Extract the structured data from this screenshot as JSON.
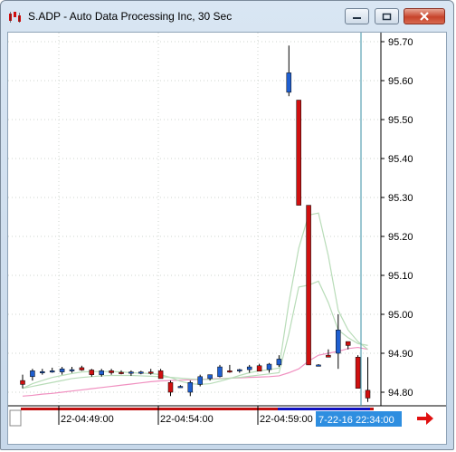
{
  "window": {
    "title": "S.ADP - Auto Data Processing Inc, 30 Sec",
    "icon": "chart-app-icon",
    "buttons": [
      "minimize-icon",
      "maximize-icon",
      "close-icon"
    ]
  },
  "colors": {
    "up": "#1f5fd0",
    "down": "#d01010",
    "ma_fast": "#b8dcb8",
    "ma_slow": "#f090c0",
    "cursor_line": "#3a8fa6",
    "time_highlight": "#2e8ee0"
  },
  "chart_data": {
    "type": "candlestick",
    "yaxis_ticks": [
      "95.70",
      "95.60",
      "95.50",
      "95.40",
      "95.30",
      "95.20",
      "95.10",
      "95.00",
      "94.90",
      "94.80"
    ],
    "ylim": [
      94.77,
      95.72
    ],
    "xaxis_labels": [
      "22-04:49:00",
      "22-04:54:00",
      "22-04:59:00"
    ],
    "cursor_time_label": "7-22-16 22:34:00",
    "candles": [
      {
        "o": 94.83,
        "h": 94.845,
        "l": 94.81,
        "c": 94.82
      },
      {
        "o": 94.84,
        "h": 94.86,
        "l": 94.83,
        "c": 94.855
      },
      {
        "o": 94.852,
        "h": 94.86,
        "l": 94.845,
        "c": 94.853
      },
      {
        "o": 94.855,
        "h": 94.863,
        "l": 94.85,
        "c": 94.855
      },
      {
        "o": 94.852,
        "h": 94.865,
        "l": 94.845,
        "c": 94.86
      },
      {
        "o": 94.858,
        "h": 94.865,
        "l": 94.85,
        "c": 94.858
      },
      {
        "o": 94.863,
        "h": 94.868,
        "l": 94.855,
        "c": 94.857
      },
      {
        "o": 94.857,
        "h": 94.86,
        "l": 94.84,
        "c": 94.845
      },
      {
        "o": 94.845,
        "h": 94.86,
        "l": 94.84,
        "c": 94.855
      },
      {
        "o": 94.855,
        "h": 94.86,
        "l": 94.845,
        "c": 94.85
      },
      {
        "o": 94.851,
        "h": 94.856,
        "l": 94.846,
        "c": 94.85
      },
      {
        "o": 94.85,
        "h": 94.856,
        "l": 94.842,
        "c": 94.852
      },
      {
        "o": 94.851,
        "h": 94.855,
        "l": 94.846,
        "c": 94.852
      },
      {
        "o": 94.852,
        "h": 94.86,
        "l": 94.845,
        "c": 94.85
      },
      {
        "o": 94.855,
        "h": 94.86,
        "l": 94.835,
        "c": 94.835
      },
      {
        "o": 94.825,
        "h": 94.83,
        "l": 94.79,
        "c": 94.8
      },
      {
        "o": 94.815,
        "h": 94.818,
        "l": 94.812,
        "c": 94.815
      },
      {
        "o": 94.8,
        "h": 94.83,
        "l": 94.79,
        "c": 94.825
      },
      {
        "o": 94.82,
        "h": 94.845,
        "l": 94.815,
        "c": 94.84
      },
      {
        "o": 94.835,
        "h": 94.845,
        "l": 94.83,
        "c": 94.845
      },
      {
        "o": 94.84,
        "h": 94.87,
        "l": 94.838,
        "c": 94.865
      },
      {
        "o": 94.855,
        "h": 94.87,
        "l": 94.85,
        "c": 94.852
      },
      {
        "o": 94.855,
        "h": 94.86,
        "l": 94.85,
        "c": 94.858
      },
      {
        "o": 94.858,
        "h": 94.87,
        "l": 94.85,
        "c": 94.865
      },
      {
        "o": 94.868,
        "h": 94.873,
        "l": 94.854,
        "c": 94.854
      },
      {
        "o": 94.858,
        "h": 94.875,
        "l": 94.85,
        "c": 94.872
      },
      {
        "o": 94.87,
        "h": 94.895,
        "l": 94.865,
        "c": 94.885
      },
      {
        "o": 95.57,
        "h": 95.69,
        "l": 95.56,
        "c": 95.62
      },
      {
        "o": 95.55,
        "h": 95.55,
        "l": 95.28,
        "c": 95.28
      },
      {
        "o": 95.28,
        "h": 95.28,
        "l": 94.87,
        "c": 94.87
      },
      {
        "o": 94.87,
        "h": 94.872,
        "l": 94.868,
        "c": 94.87
      },
      {
        "o": 94.895,
        "h": 94.91,
        "l": 94.89,
        "c": 94.89
      },
      {
        "o": 94.9,
        "h": 95.0,
        "l": 94.86,
        "c": 94.96
      },
      {
        "o": 94.93,
        "h": 94.93,
        "l": 94.91,
        "c": 94.92
      },
      {
        "o": 94.89,
        "h": 94.895,
        "l": 94.81,
        "c": 94.81
      },
      {
        "o": 94.805,
        "h": 94.89,
        "l": 94.775,
        "c": 94.785
      }
    ],
    "ma_fast": [
      94.81,
      94.822,
      94.83,
      94.838,
      94.843,
      94.848,
      94.852,
      94.853,
      94.853,
      94.853,
      94.852,
      94.85,
      94.849,
      94.848,
      94.845,
      94.838,
      94.828,
      94.822,
      94.82,
      94.822,
      94.828,
      94.835,
      94.843,
      94.85,
      94.855,
      94.858,
      94.862,
      95.03,
      95.17,
      95.255,
      95.26,
      95.15,
      95.01,
      94.96,
      94.93,
      94.91
    ],
    "ma_fast2": [
      94.81,
      94.815,
      94.82,
      94.825,
      94.83,
      94.835,
      94.838,
      94.84,
      94.842,
      94.843,
      94.843,
      94.843,
      94.842,
      94.841,
      94.84,
      94.838,
      94.836,
      94.834,
      94.833,
      94.833,
      94.834,
      94.836,
      94.838,
      94.841,
      94.844,
      94.847,
      94.85,
      94.95,
      95.07,
      95.075,
      95.085,
      95.03,
      94.96,
      94.94,
      94.925,
      94.92
    ],
    "ma_slow": [
      94.79,
      94.792,
      94.795,
      94.797,
      94.8,
      94.803,
      94.806,
      94.809,
      94.812,
      94.815,
      94.818,
      94.821,
      94.824,
      94.827,
      94.829,
      94.83,
      94.831,
      94.832,
      94.833,
      94.834,
      94.835,
      94.836,
      94.837,
      94.838,
      94.839,
      94.84,
      94.842,
      94.85,
      94.86,
      94.88,
      94.895,
      94.9,
      94.905,
      94.912,
      94.915,
      94.91
    ]
  }
}
